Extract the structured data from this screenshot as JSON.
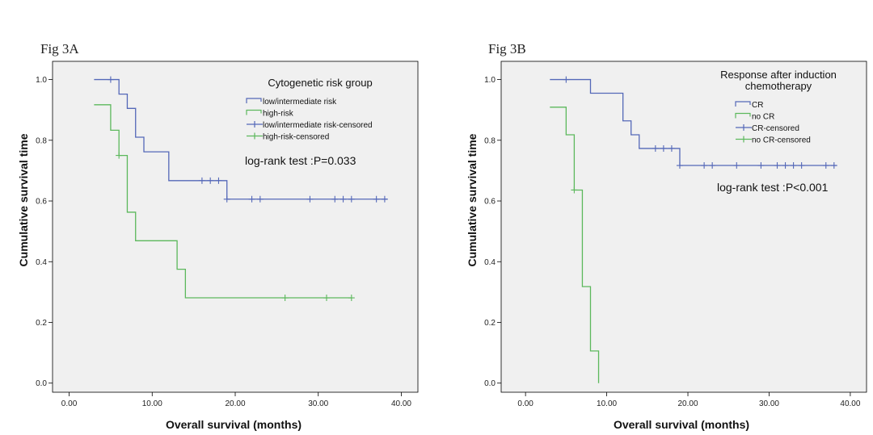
{
  "chart_data": [
    {
      "type": "line",
      "panel_label": "Fig 3A",
      "title": "",
      "xlabel": "Overall survival (months)",
      "ylabel": "Cumulative survival time",
      "xlim": [
        -2,
        42
      ],
      "ylim": [
        -0.03,
        1.06
      ],
      "xticks": [
        "0.00",
        "10.00",
        "20.00",
        "30.00",
        "40.00"
      ],
      "yticks": [
        "0.0",
        "0.2",
        "0.4",
        "0.6",
        "0.8",
        "1.0"
      ],
      "legend_title": "Cytogenetic risk group",
      "legend_position": "top-right",
      "annotation": "log-rank test :P=0.033",
      "series": [
        {
          "name": "low/intermediate risk",
          "color": "#5468b8",
          "steps": [
            [
              3,
              1.0
            ],
            [
              6,
              0.952
            ],
            [
              7,
              0.905
            ],
            [
              8,
              0.81
            ],
            [
              9,
              0.762
            ],
            [
              12,
              0.667
            ],
            [
              19,
              0.606
            ],
            [
              38.3,
              0.606
            ]
          ],
          "censored": [
            [
              5,
              1.0
            ],
            [
              16,
              0.667
            ],
            [
              17,
              0.667
            ],
            [
              18,
              0.667
            ],
            [
              19,
              0.606
            ],
            [
              22,
              0.606
            ],
            [
              23,
              0.606
            ],
            [
              29,
              0.606
            ],
            [
              32,
              0.606
            ],
            [
              33,
              0.606
            ],
            [
              34,
              0.606
            ],
            [
              37,
              0.606
            ],
            [
              38,
              0.606
            ]
          ]
        },
        {
          "name": "high-risk",
          "color": "#5cb85c",
          "steps": [
            [
              3,
              0.917
            ],
            [
              5,
              0.833
            ],
            [
              6,
              0.75
            ],
            [
              7,
              0.563
            ],
            [
              8,
              0.469
            ],
            [
              13,
              0.375
            ],
            [
              14,
              0.281
            ],
            [
              34,
              0.281
            ]
          ],
          "censored": [
            [
              6,
              0.75
            ],
            [
              26,
              0.281
            ],
            [
              31,
              0.281
            ],
            [
              34,
              0.281
            ]
          ]
        }
      ],
      "legend_entries": [
        "low/intermediate risk",
        "high-risk",
        "low/intermediate risk-censored",
        "high-risk-censored"
      ]
    },
    {
      "type": "line",
      "panel_label": "Fig 3B",
      "title": "",
      "xlabel": "Overall survival (months)",
      "ylabel": "Cumulative survival time",
      "xlim": [
        -3,
        42
      ],
      "ylim": [
        -0.03,
        1.06
      ],
      "xticks": [
        "0.00",
        "10.00",
        "20.00",
        "30.00",
        "40.00"
      ],
      "yticks": [
        "0.0",
        "0.2",
        "0.4",
        "0.6",
        "0.8",
        "1.0"
      ],
      "legend_title": [
        "Response after induction",
        "chemotherapy"
      ],
      "legend_position": "top-right",
      "annotation": "log-rank test :P<0.001",
      "series": [
        {
          "name": "CR",
          "color": "#5468b8",
          "steps": [
            [
              3,
              1.0
            ],
            [
              8,
              0.955
            ],
            [
              12,
              0.864
            ],
            [
              13,
              0.818
            ],
            [
              14,
              0.773
            ],
            [
              19,
              0.717
            ],
            [
              38.3,
              0.717
            ]
          ],
          "censored": [
            [
              5,
              1.0
            ],
            [
              16,
              0.773
            ],
            [
              17,
              0.773
            ],
            [
              18,
              0.773
            ],
            [
              19,
              0.717
            ],
            [
              22,
              0.717
            ],
            [
              23,
              0.717
            ],
            [
              26,
              0.717
            ],
            [
              29,
              0.717
            ],
            [
              31,
              0.717
            ],
            [
              32,
              0.717
            ],
            [
              33,
              0.717
            ],
            [
              34,
              0.717
            ],
            [
              37,
              0.717
            ],
            [
              38,
              0.717
            ]
          ]
        },
        {
          "name": "no CR",
          "color": "#5cb85c",
          "steps": [
            [
              3,
              0.909
            ],
            [
              5,
              0.818
            ],
            [
              6,
              0.636
            ],
            [
              7,
              0.318
            ],
            [
              8,
              0.106
            ],
            [
              9,
              0.0
            ]
          ],
          "censored": [
            [
              6,
              0.636
            ]
          ]
        }
      ],
      "legend_entries": [
        "CR",
        "no CR",
        "CR-censored",
        "no CR-censored"
      ]
    }
  ]
}
